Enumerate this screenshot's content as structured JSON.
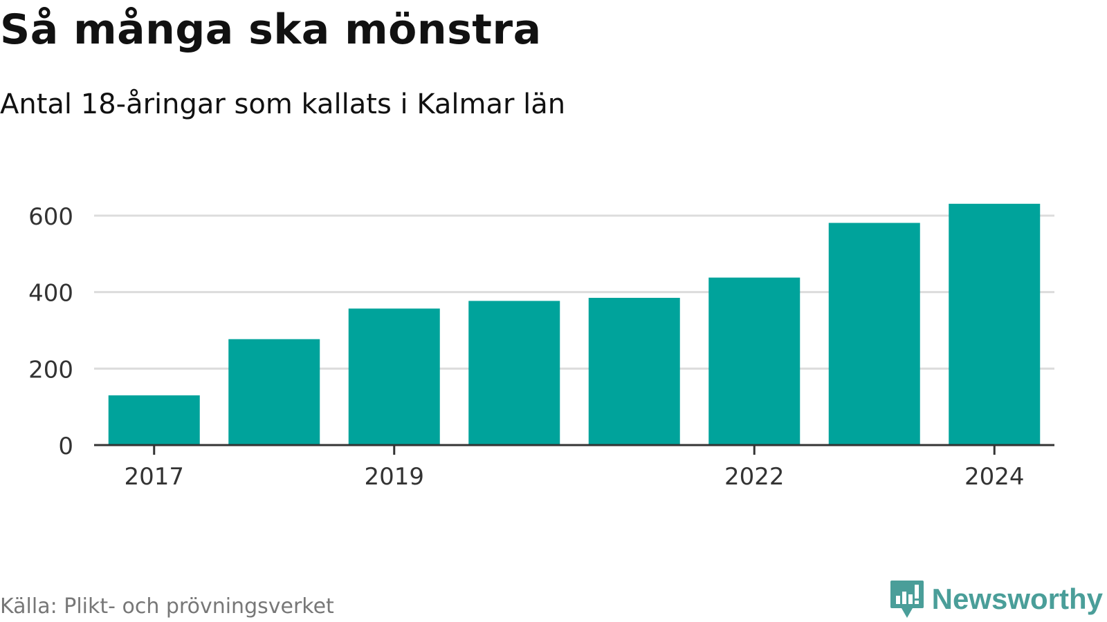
{
  "header": {
    "title": "Så många ska mönstra",
    "subtitle": "Antal 18-åringar som kallats i Kalmar län"
  },
  "footer": {
    "source": "Källa: Plikt- och prövningsverket",
    "brand": "Newsworthy"
  },
  "colors": {
    "bar": "#00a39b",
    "grid": "#dcdcdc",
    "axis": "#333333",
    "tick_text": "#333333",
    "brand": "#4a9e99"
  },
  "chart_data": {
    "type": "bar",
    "title": "Så många ska mönstra",
    "subtitle": "Antal 18-åringar som kallats i Kalmar län",
    "categories": [
      "2017",
      "2018",
      "2019",
      "2020",
      "2021",
      "2022",
      "2023",
      "2024"
    ],
    "values": [
      130,
      277,
      357,
      377,
      385,
      438,
      581,
      631
    ],
    "x_tick_labels": [
      "2017",
      "2019",
      "2022",
      "2024"
    ],
    "y_ticks": [
      0,
      200,
      400,
      600
    ],
    "ylim": [
      0,
      680
    ],
    "xlabel": "",
    "ylabel": "",
    "grid": true,
    "legend": "none"
  }
}
